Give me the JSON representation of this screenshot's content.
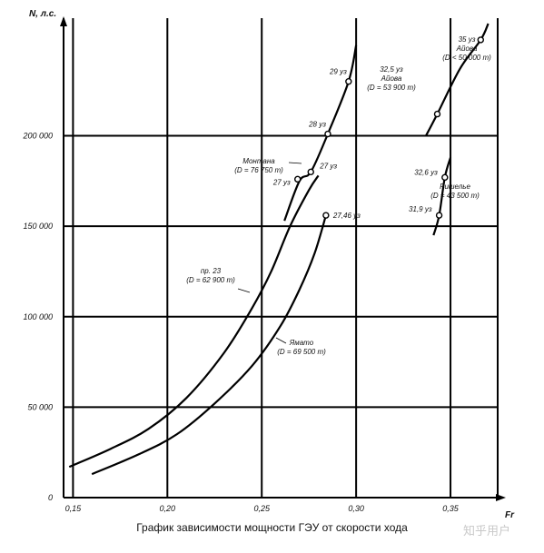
{
  "caption": "График зависимости мощности ГЭУ от скорости хода",
  "watermark": "知乎用户",
  "chart_data": {
    "type": "line",
    "xlabel": "Fr",
    "ylabel": "N, л.с.",
    "xlim": [
      0.145,
      0.375
    ],
    "ylim": [
      0,
      265000
    ],
    "x_ticks": [
      {
        "value": 0.15,
        "label": "0,15"
      },
      {
        "value": 0.2,
        "label": "0,20"
      },
      {
        "value": 0.25,
        "label": "0,25"
      },
      {
        "value": 0.3,
        "label": "0,30"
      },
      {
        "value": 0.35,
        "label": "0,35"
      }
    ],
    "y_ticks": [
      {
        "value": 0,
        "label": "0"
      },
      {
        "value": 50000,
        "label": "50 000"
      },
      {
        "value": 100000,
        "label": "100 000"
      },
      {
        "value": 150000,
        "label": "150 000"
      },
      {
        "value": 200000,
        "label": "200 000"
      }
    ],
    "grid": true,
    "series": [
      {
        "key": "pr23",
        "label_lines": [
          "пр. 23",
          "(D = 62 900 т)"
        ],
        "x": [
          0.148,
          0.17,
          0.19,
          0.21,
          0.23,
          0.245,
          0.255,
          0.265,
          0.275,
          0.28
        ],
        "y": [
          17000,
          27000,
          38000,
          55000,
          80000,
          105000,
          125000,
          150000,
          170000,
          178000
        ],
        "points": []
      },
      {
        "key": "yamato",
        "label_lines": [
          "Ямато",
          "(D = 69 500 т)"
        ],
        "x": [
          0.16,
          0.185,
          0.205,
          0.225,
          0.245,
          0.26,
          0.27,
          0.278,
          0.284
        ],
        "y": [
          13000,
          24000,
          35000,
          52000,
          73000,
          95000,
          115000,
          135000,
          156000
        ],
        "points": [
          {
            "x": 0.284,
            "y": 156000,
            "label": "27,46 уз"
          }
        ]
      },
      {
        "key": "montana",
        "label_lines": [
          "Монтана",
          "(D = 76 750 т)"
        ],
        "x": [
          0.262,
          0.27,
          0.276,
          0.285,
          0.296,
          0.3
        ],
        "y": [
          153000,
          175000,
          180000,
          201000,
          230000,
          250000
        ],
        "points": [
          {
            "x": 0.269,
            "y": 176000,
            "label": "27 уз"
          },
          {
            "x": 0.276,
            "y": 180000,
            "label": "27 уз"
          },
          {
            "x": 0.285,
            "y": 201000,
            "label": "28 уз"
          },
          {
            "x": 0.296,
            "y": 230000,
            "label": "29 уз"
          }
        ]
      },
      {
        "key": "iowa",
        "label_lines": [
          "Айова"
        ],
        "x": [
          0.337,
          0.343,
          0.355,
          0.366,
          0.37
        ],
        "y": [
          200000,
          212000,
          237000,
          253000,
          262000
        ],
        "points": [
          {
            "x": 0.343,
            "y": 212000,
            "label": "32,5 уз"
          },
          {
            "x": 0.366,
            "y": 253000,
            "label": "35 уз"
          }
        ]
      },
      {
        "key": "richelieu",
        "label_lines": [
          "Ришелье",
          "(D = 43 500 т)"
        ],
        "x": [
          0.341,
          0.344,
          0.347,
          0.35
        ],
        "y": [
          145000,
          156000,
          177000,
          188000
        ],
        "points": [
          {
            "x": 0.344,
            "y": 156000,
            "label": "31,9 уз"
          },
          {
            "x": 0.347,
            "y": 177000,
            "label": "32,6 уз"
          }
        ]
      }
    ],
    "annotations": {
      "iowa_1": [
        "32,5 уз",
        "Айова",
        "(D = 53 900 т)"
      ],
      "iowa_2": [
        "35 уз",
        "Айова",
        "(D < 50 000 т)"
      ]
    }
  }
}
